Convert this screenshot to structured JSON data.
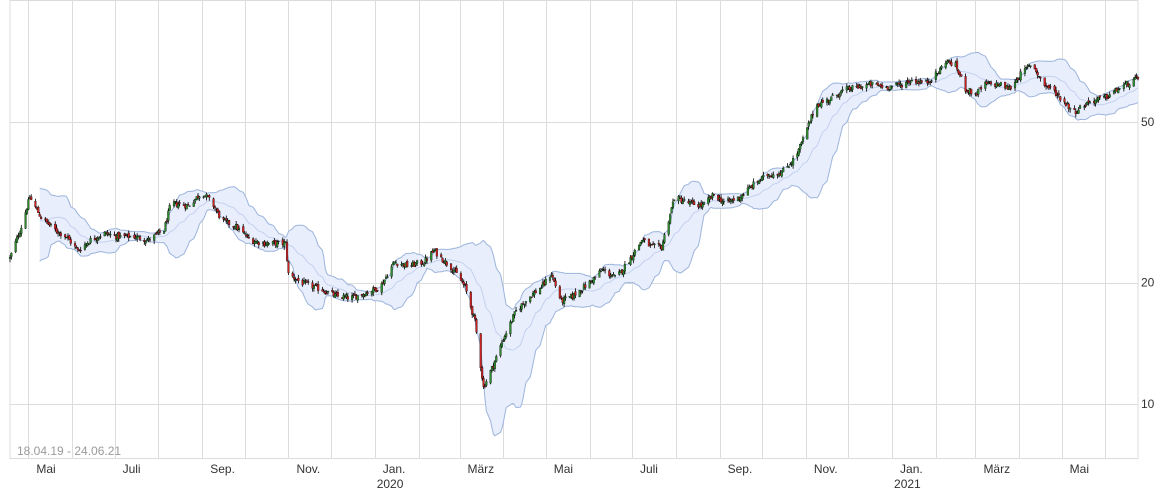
{
  "chart_data": {
    "type": "candlestick",
    "date_range_label": "18.04.19 - 24.06.21",
    "y_axis": {
      "scale": "log",
      "ticks": [
        10,
        20,
        50
      ],
      "position": "right"
    },
    "x_axis": {
      "month_labels": [
        "Mai",
        "Juli",
        "Sep.",
        "Nov.",
        "Jan.",
        "März",
        "Mai",
        "Juli",
        "Sep.",
        "Nov.",
        "Jan.",
        "März",
        "Mai"
      ],
      "year_labels": [
        "2020",
        "2021"
      ],
      "gridlines": [
        "2019-05",
        "2019-06",
        "2019-07",
        "2019-08",
        "2019-09",
        "2019-10",
        "2019-11",
        "2019-12",
        "2020-01",
        "2020-02",
        "2020-03",
        "2020-04",
        "2020-05",
        "2020-06",
        "2020-07",
        "2020-08",
        "2020-09",
        "2020-10",
        "2020-11",
        "2020-12",
        "2021-01",
        "2021-02",
        "2021-03",
        "2021-04",
        "2021-05",
        "2021-06"
      ]
    },
    "grid": true,
    "bollinger_bands": true,
    "colors": {
      "up": "#2e8b2e",
      "down": "#cc2222",
      "wick": "#000000",
      "band_fill": "#e8eefc",
      "band_line": "#9cb4dc",
      "mid_line": "#c3d1ee",
      "grid": "#dcdcdc"
    },
    "close_path": [
      [
        "2019-04-18",
        23.0
      ],
      [
        "2019-04-26",
        27.5
      ],
      [
        "2019-05-02",
        32.5
      ],
      [
        "2019-05-10",
        29.0
      ],
      [
        "2019-05-20",
        27.0
      ],
      [
        "2019-05-28",
        26.0
      ],
      [
        "2019-06-05",
        24.0
      ],
      [
        "2019-06-14",
        25.5
      ],
      [
        "2019-06-24",
        26.5
      ],
      [
        "2019-07-03",
        26.0
      ],
      [
        "2019-07-15",
        26.0
      ],
      [
        "2019-07-25",
        25.5
      ],
      [
        "2019-08-05",
        27.0
      ],
      [
        "2019-08-10",
        31.5
      ],
      [
        "2019-08-22",
        31.0
      ],
      [
        "2019-09-01",
        33.5
      ],
      [
        "2019-09-08",
        31.5
      ],
      [
        "2019-09-15",
        28.5
      ],
      [
        "2019-09-25",
        27.5
      ],
      [
        "2019-10-05",
        25.5
      ],
      [
        "2019-10-15",
        25.0
      ],
      [
        "2019-10-30",
        25.0
      ],
      [
        "2019-11-01",
        21.0
      ],
      [
        "2019-11-10",
        20.0
      ],
      [
        "2019-11-25",
        19.2
      ],
      [
        "2019-12-05",
        18.5
      ],
      [
        "2019-12-15",
        18.3
      ],
      [
        "2019-12-25",
        18.8
      ],
      [
        "2020-01-05",
        19.5
      ],
      [
        "2020-01-15",
        22.5
      ],
      [
        "2020-01-25",
        22.0
      ],
      [
        "2020-02-05",
        22.5
      ],
      [
        "2020-02-12",
        24.0
      ],
      [
        "2020-02-20",
        22.5
      ],
      [
        "2020-02-26",
        21.5
      ],
      [
        "2020-03-05",
        19.5
      ],
      [
        "2020-03-12",
        16.0
      ],
      [
        "2020-03-18",
        11.0
      ],
      [
        "2020-03-25",
        12.5
      ],
      [
        "2020-04-01",
        14.5
      ],
      [
        "2020-04-10",
        17.0
      ],
      [
        "2020-04-20",
        18.5
      ],
      [
        "2020-04-28",
        19.5
      ],
      [
        "2020-05-05",
        21.0
      ],
      [
        "2020-05-12",
        18.0
      ],
      [
        "2020-05-20",
        18.5
      ],
      [
        "2020-06-01",
        20.0
      ],
      [
        "2020-06-10",
        21.5
      ],
      [
        "2020-06-20",
        20.5
      ],
      [
        "2020-06-30",
        23.0
      ],
      [
        "2020-07-08",
        25.5
      ],
      [
        "2020-07-15",
        24.5
      ],
      [
        "2020-07-22",
        24.5
      ],
      [
        "2020-07-31",
        32.5
      ],
      [
        "2020-08-10",
        31.5
      ],
      [
        "2020-08-20",
        31.0
      ],
      [
        "2020-08-28",
        33.0
      ],
      [
        "2020-09-05",
        31.5
      ],
      [
        "2020-09-15",
        32.5
      ],
      [
        "2020-09-25",
        35.0
      ],
      [
        "2020-10-05",
        37.0
      ],
      [
        "2020-10-15",
        37.5
      ],
      [
        "2020-10-25",
        41.0
      ],
      [
        "2020-11-01",
        47.0
      ],
      [
        "2020-11-08",
        55.0
      ],
      [
        "2020-11-18",
        57.0
      ],
      [
        "2020-11-28",
        60.0
      ],
      [
        "2020-12-08",
        61.0
      ],
      [
        "2020-12-18",
        62.0
      ],
      [
        "2020-12-28",
        61.0
      ],
      [
        "2021-01-08",
        62.0
      ],
      [
        "2021-01-15",
        63.5
      ],
      [
        "2021-01-25",
        62.5
      ],
      [
        "2021-02-03",
        66.5
      ],
      [
        "2021-02-08",
        71.0
      ],
      [
        "2021-02-15",
        69.0
      ],
      [
        "2021-02-22",
        60.5
      ],
      [
        "2021-03-01",
        58.5
      ],
      [
        "2021-03-08",
        62.0
      ],
      [
        "2021-03-18",
        62.0
      ],
      [
        "2021-03-25",
        60.5
      ],
      [
        "2021-04-01",
        65.0
      ],
      [
        "2021-04-10",
        70.0
      ],
      [
        "2021-04-18",
        62.0
      ],
      [
        "2021-04-25",
        60.0
      ],
      [
        "2021-05-03",
        56.0
      ],
      [
        "2021-05-10",
        53.0
      ],
      [
        "2021-05-20",
        56.0
      ],
      [
        "2021-06-01",
        57.5
      ],
      [
        "2021-06-12",
        61.0
      ],
      [
        "2021-06-24",
        64.0
      ]
    ]
  }
}
